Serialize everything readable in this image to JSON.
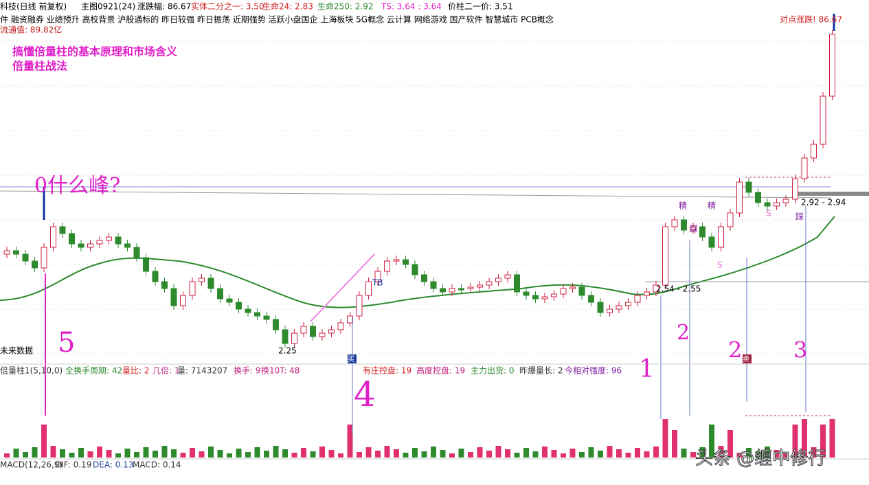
{
  "header": {
    "stock": "科技(日线 前复权)",
    "main": "主图0921(24)",
    "change": "涨跌幅: 86.67",
    "half": "实体二分之一: 3.50",
    "life24": "生命24: 2.83",
    "life250": "生命250: 2.92",
    "ts": "TS: 3.64 : 3.64",
    "price": "价柱二一价: 3.51"
  },
  "concepts": "件 融资融券 业绩预升 高校背景 沪股通标的 昨日较强 昨日振荡 近期强势 活跃小盘国企 上海板块 5G概念 云计算 网络游戏 国产软件 智慧城市 PCB概念",
  "float_value": "流通值: 89.82亿",
  "headline": [
    "搞懂倍量柱的基本原理和市场含义",
    "倍量柱战法"
  ],
  "handwriting": {
    "peak": "0什么峰?",
    "n5": "5",
    "n4": "4",
    "n1": "1",
    "n2a": "2",
    "n2b": "2",
    "n3": "3"
  },
  "chart_labels": {
    "low": "2.25",
    "tb": "TB",
    "range1": "2.54 - 2.55",
    "range2": "2.92 - 2.94",
    "future": "未来数据",
    "top": "对点涨跌! 86.67",
    "jing": "精",
    "cai": "踩",
    "s": "S",
    "buy": "买",
    "sell": "卖"
  },
  "indicator": [
    "倍量柱1(5,10,0)",
    "全换手周期: 42",
    "量比: 2",
    "几倍: 1",
    "量: 7143207",
    "换手: 9",
    "换10T: 48",
    "有庄控盘: 19",
    "高度控盘: 19",
    "主力出货: 0",
    "昨爆量长: 2",
    "今相对强度: 96"
  ],
  "macd": [
    "MACD(12,26,9)",
    "DIF: 0.19",
    "DEA: 0.13",
    "MACD: 0.14"
  ],
  "watermark": "头条 @缠中修行"
}
